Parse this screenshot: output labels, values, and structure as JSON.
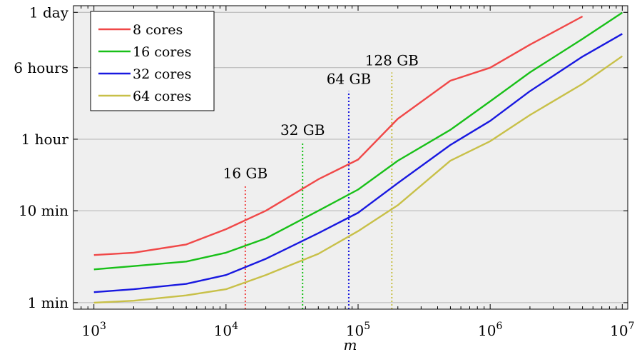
{
  "chart_data": {
    "type": "line",
    "xlabel": "m",
    "x_scale": "log",
    "y_scale": "log",
    "xlim": [
      700,
      11000000
    ],
    "ylim_minutes": [
      0.85,
      1700
    ],
    "grid": "horizontal-only",
    "legend_position": "top-left",
    "x_ticks": [
      {
        "value": 1000,
        "base": "10",
        "exp": "3"
      },
      {
        "value": 10000,
        "base": "10",
        "exp": "4"
      },
      {
        "value": 100000,
        "base": "10",
        "exp": "5"
      },
      {
        "value": 1000000,
        "base": "10",
        "exp": "6"
      },
      {
        "value": 10000000,
        "base": "10",
        "exp": "7"
      }
    ],
    "y_ticks": [
      {
        "value": 1,
        "label": "1 min"
      },
      {
        "value": 10,
        "label": "10 min"
      },
      {
        "value": 60,
        "label": "1 hour"
      },
      {
        "value": 360,
        "label": "6 hours"
      },
      {
        "value": 1440,
        "label": "1 day"
      }
    ],
    "series": [
      {
        "name": "8 cores",
        "color": "#f04848",
        "x": [
          1000,
          2000,
          5000,
          10000,
          20000,
          50000,
          100000,
          200000,
          500000,
          1000000,
          2000000,
          5000000
        ],
        "y": [
          3.3,
          3.5,
          4.3,
          6.3,
          10,
          22,
          36,
          100,
          260,
          360,
          640,
          1300
        ]
      },
      {
        "name": "16 cores",
        "color": "#18c018",
        "x": [
          1000,
          2000,
          5000,
          10000,
          20000,
          50000,
          100000,
          200000,
          500000,
          1000000,
          2000000,
          5000000,
          10000000
        ],
        "y": [
          2.3,
          2.5,
          2.8,
          3.5,
          5,
          10,
          17,
          35,
          76,
          155,
          320,
          740,
          1430
        ]
      },
      {
        "name": "32 cores",
        "color": "#1818e0",
        "x": [
          1000,
          2000,
          5000,
          10000,
          20000,
          50000,
          100000,
          200000,
          500000,
          1000000,
          2000000,
          5000000,
          10000000
        ],
        "y": [
          1.3,
          1.4,
          1.6,
          2,
          3,
          5.7,
          9.5,
          20,
          52,
          95,
          200,
          475,
          840
        ]
      },
      {
        "name": "64 cores",
        "color": "#c8c048",
        "x": [
          1000,
          2000,
          5000,
          10000,
          20000,
          50000,
          100000,
          200000,
          500000,
          1000000,
          2000000,
          5000000,
          10000000
        ],
        "y": [
          1,
          1.05,
          1.2,
          1.4,
          2,
          3.4,
          6,
          11.5,
          35,
          57,
          110,
          240,
          480
        ]
      }
    ],
    "memory_limits": [
      {
        "label": "16 GB",
        "x": 14000,
        "y_top": 19,
        "color": "#f04848"
      },
      {
        "label": "32 GB",
        "x": 38000,
        "y_top": 56,
        "color": "#18c018"
      },
      {
        "label": "64 GB",
        "x": 85000,
        "y_top": 200,
        "color": "#1818e0"
      },
      {
        "label": "128 GB",
        "x": 180000,
        "y_top": 320,
        "color": "#c8c048"
      }
    ]
  }
}
